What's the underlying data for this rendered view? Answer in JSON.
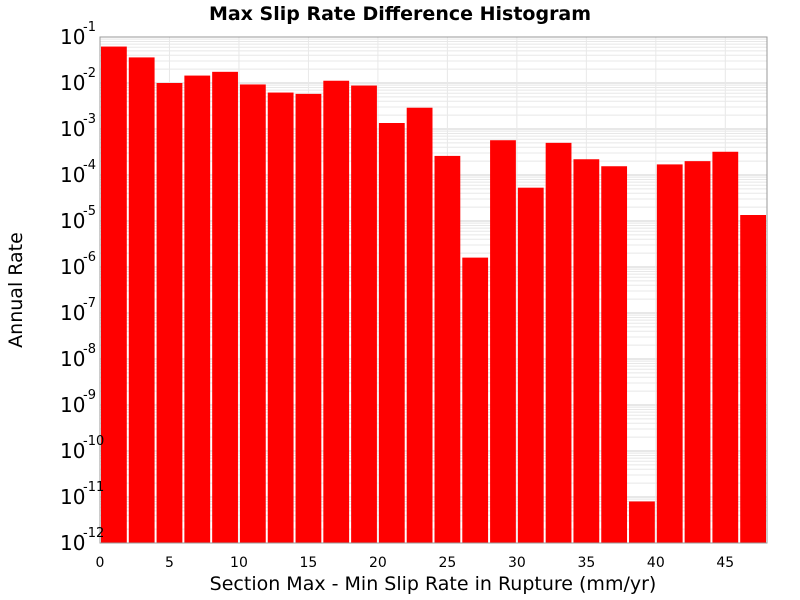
{
  "chart_data": {
    "type": "bar",
    "title": "Max Slip Rate Difference Histogram",
    "xlabel": "Section Max - Min Slip Rate in Rupture (mm/yr)",
    "ylabel": "Annual Rate",
    "x_scale": "linear",
    "y_scale": "log",
    "xlim": [
      0,
      48
    ],
    "ylim": [
      1e-12,
      0.1
    ],
    "x_ticks": [
      0,
      5,
      10,
      15,
      20,
      25,
      30,
      35,
      40,
      45
    ],
    "x_tick_labels": [
      "0",
      "5",
      "10",
      "15",
      "20",
      "25",
      "30",
      "35",
      "40",
      "45"
    ],
    "y_tick_base": "10",
    "y_tick_exponents": [
      "-1",
      "-2",
      "-3",
      "-4",
      "-5",
      "-6",
      "-7",
      "-8",
      "-9",
      "-10",
      "-11",
      "-12"
    ],
    "bin_width": 2,
    "bin_starts": [
      0,
      2,
      4,
      6,
      8,
      10,
      12,
      14,
      16,
      18,
      20,
      22,
      24,
      26,
      28,
      30,
      32,
      34,
      36,
      38,
      40,
      42,
      44,
      46
    ],
    "values": [
      0.062,
      0.036,
      0.01,
      0.0145,
      0.0175,
      0.0093,
      0.0062,
      0.0058,
      0.0112,
      0.0088,
      0.00135,
      0.0029,
      0.00026,
      1.6e-06,
      0.00057,
      5.3e-05,
      0.0005,
      0.00022,
      0.000155,
      8e-12,
      0.00017,
      0.0002,
      0.00032,
      1.35e-05
    ],
    "grid": true,
    "legend": "none",
    "colors": {
      "bar_fill": "#ff0000",
      "bar_edge": "#ffffff",
      "grid_minor": "#e8e8e8",
      "grid_major": "#d0d0d0",
      "plot_border": "#999999"
    }
  }
}
